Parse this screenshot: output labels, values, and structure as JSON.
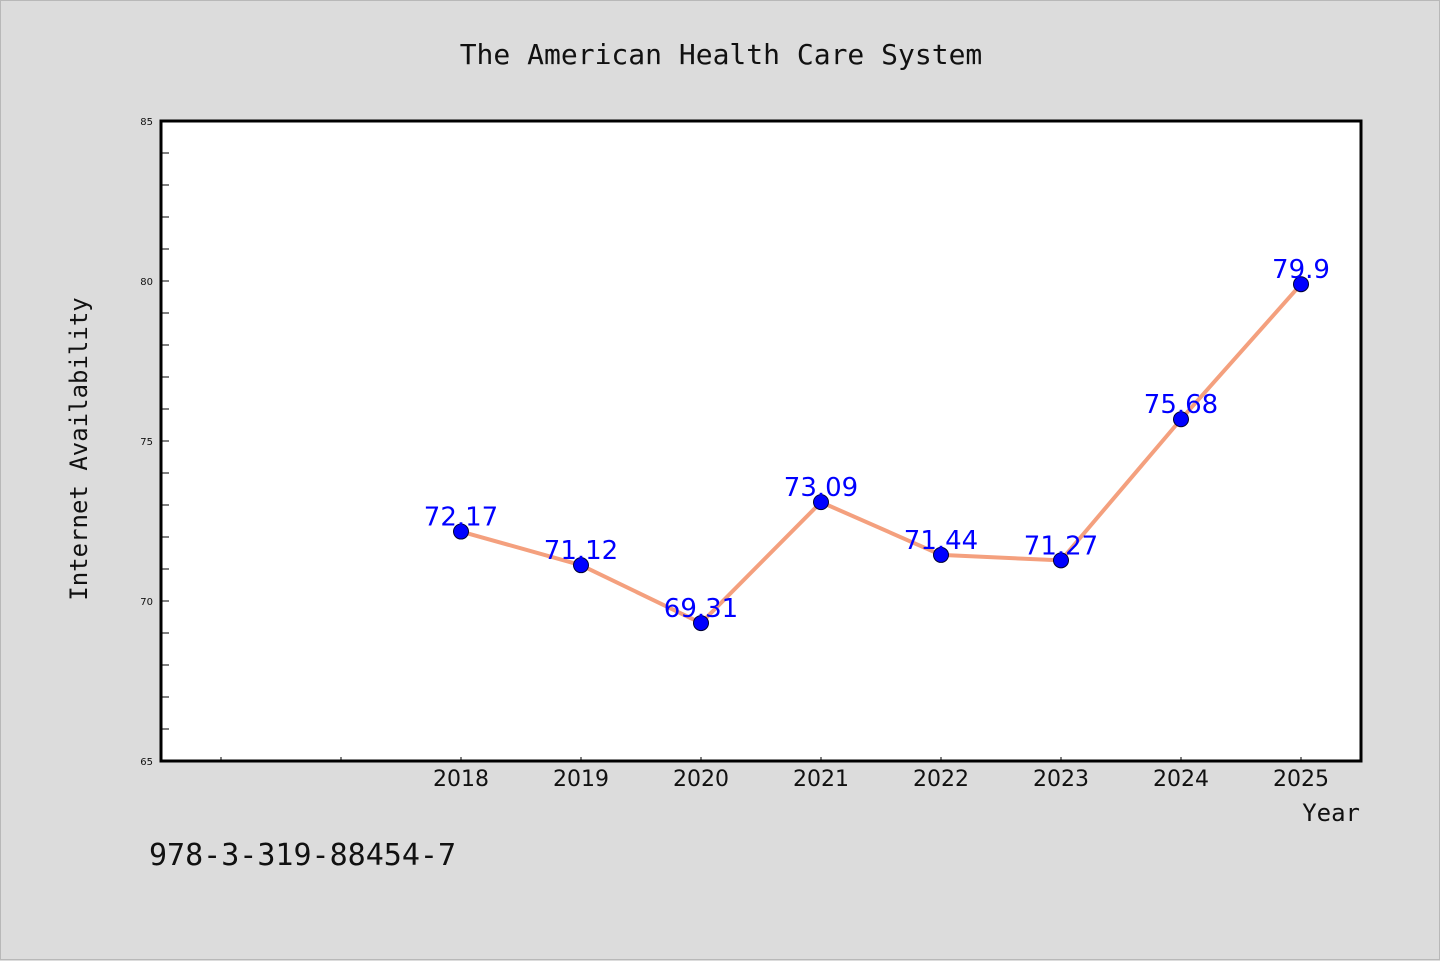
{
  "chart_data": {
    "type": "line",
    "title": "The American Health Care System",
    "xlabel": "Year",
    "ylabel": "Internet Availability",
    "categories": [
      "2018",
      "2019",
      "2020",
      "2021",
      "2022",
      "2023",
      "2024",
      "2025"
    ],
    "series": [
      {
        "values": [
          72.17,
          71.12,
          69.31,
          73.09,
          71.44,
          71.27,
          75.68,
          79.9
        ],
        "labels": [
          "72.17",
          "71.12",
          "69.31",
          "73.09",
          "71.44",
          "71.27",
          "75.68",
          "79.9"
        ]
      }
    ],
    "ylim": [
      65,
      85
    ],
    "yticks": [
      "65",
      "70",
      "75",
      "80",
      "85"
    ],
    "grid": false,
    "line_color": "#f4a07e",
    "marker_color": "#0000ff",
    "label_color": "#0000ff"
  },
  "footer": {
    "isbn": "978-3-319-88454-7"
  }
}
